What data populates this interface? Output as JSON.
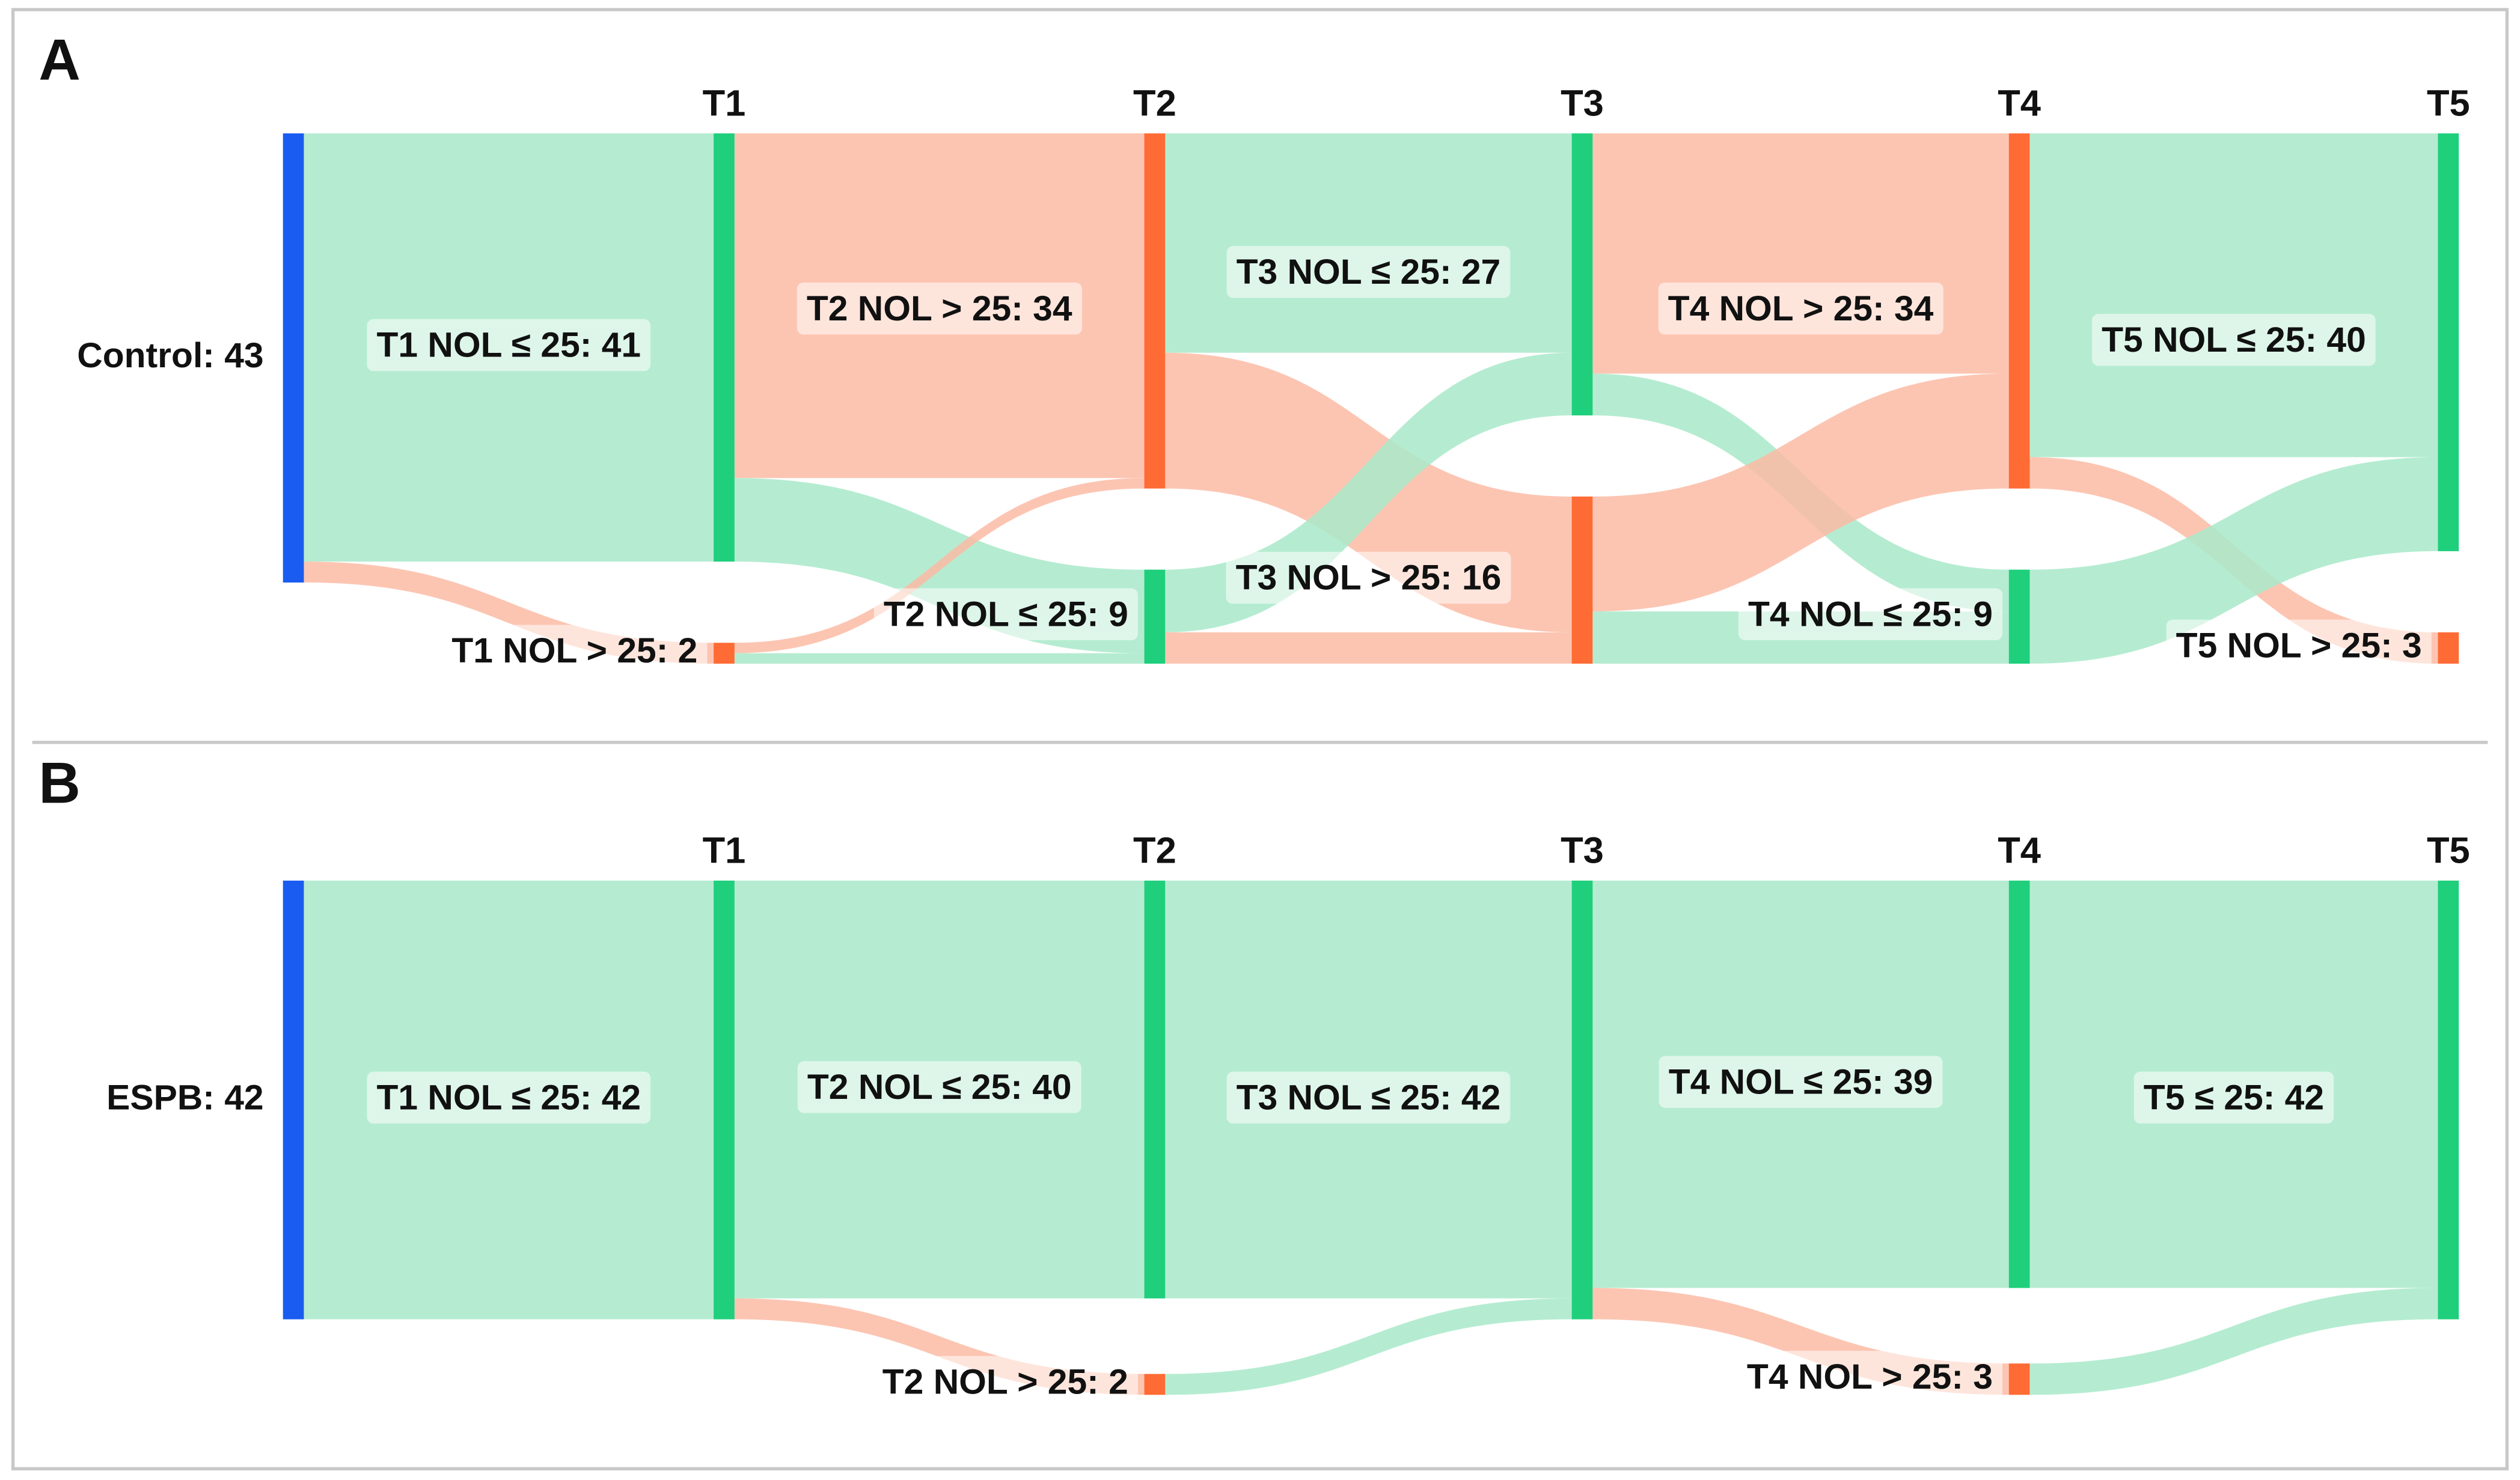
{
  "chart_data": [
    {
      "type": "sankey",
      "panel": "A",
      "columns": [
        "T1",
        "T2",
        "T3",
        "T4",
        "T5"
      ],
      "nodes": [
        {
          "name": "Control: 43",
          "value": 43,
          "column": 0,
          "color": "#1a5cf0"
        },
        {
          "name": "T1 NOL ≤ 25: 41",
          "value": 41,
          "column": 1,
          "color": "#1fcf7c"
        },
        {
          "name": "T1 NOL > 25: 2",
          "value": 2,
          "column": 1,
          "color": "#ff6b35"
        },
        {
          "name": "T2 NOL > 25: 34",
          "value": 34,
          "column": 2,
          "color": "#ff6b35"
        },
        {
          "name": "T2 NOL ≤ 25: 9",
          "value": 9,
          "column": 2,
          "color": "#1fcf7c"
        },
        {
          "name": "T3 NOL ≤ 25: 27",
          "value": 27,
          "column": 3,
          "color": "#1fcf7c"
        },
        {
          "name": "T3 NOL > 25: 16",
          "value": 16,
          "column": 3,
          "color": "#ff6b35"
        },
        {
          "name": "T4 NOL > 25: 34",
          "value": 34,
          "column": 4,
          "color": "#ff6b35"
        },
        {
          "name": "T4 NOL ≤ 25: 9",
          "value": 9,
          "column": 4,
          "color": "#1fcf7c"
        },
        {
          "name": "T5 NOL ≤ 25: 40",
          "value": 40,
          "column": 5,
          "color": "#1fcf7c"
        },
        {
          "name": "T5 NOL > 25: 3",
          "value": 3,
          "column": 5,
          "color": "#ff6b35"
        }
      ],
      "links": [
        {
          "source": 0,
          "target": 1,
          "value": 41,
          "color": "#a8e9c9"
        },
        {
          "source": 0,
          "target": 2,
          "value": 2,
          "color": "#fbbba5"
        },
        {
          "source": 1,
          "target": 3,
          "value": 33,
          "color": "#fbbba5"
        },
        {
          "source": 1,
          "target": 4,
          "value": 8,
          "color": "#a8e9c9"
        },
        {
          "source": 2,
          "target": 3,
          "value": 1,
          "color": "#fbbba5"
        },
        {
          "source": 2,
          "target": 4,
          "value": 1,
          "color": "#a8e9c9"
        },
        {
          "source": 3,
          "target": 5,
          "value": 21,
          "color": "#a8e9c9"
        },
        {
          "source": 3,
          "target": 6,
          "value": 13,
          "color": "#fbbba5"
        },
        {
          "source": 4,
          "target": 5,
          "value": 6,
          "color": "#a8e9c9"
        },
        {
          "source": 4,
          "target": 6,
          "value": 3,
          "color": "#fbbba5"
        },
        {
          "source": 5,
          "target": 7,
          "value": 23,
          "color": "#fbbba5"
        },
        {
          "source": 5,
          "target": 8,
          "value": 4,
          "color": "#a8e9c9"
        },
        {
          "source": 6,
          "target": 7,
          "value": 11,
          "color": "#fbbba5"
        },
        {
          "source": 6,
          "target": 8,
          "value": 5,
          "color": "#a8e9c9"
        },
        {
          "source": 7,
          "target": 9,
          "value": 31,
          "color": "#a8e9c9"
        },
        {
          "source": 7,
          "target": 10,
          "value": 3,
          "color": "#fbbba5"
        },
        {
          "source": 8,
          "target": 9,
          "value": 9,
          "color": "#a8e9c9"
        }
      ]
    },
    {
      "type": "sankey",
      "panel": "B",
      "columns": [
        "T1",
        "T2",
        "T3",
        "T4",
        "T5"
      ],
      "nodes": [
        {
          "name": "ESPB: 42",
          "value": 42,
          "column": 0,
          "color": "#1a5cf0"
        },
        {
          "name": "T1 NOL ≤ 25: 42",
          "value": 42,
          "column": 1,
          "color": "#1fcf7c"
        },
        {
          "name": "T2 NOL ≤ 25: 40",
          "value": 40,
          "column": 2,
          "color": "#1fcf7c"
        },
        {
          "name": "T2 NOL > 25: 2",
          "value": 2,
          "column": 2,
          "color": "#ff6b35"
        },
        {
          "name": "T3 NOL ≤ 25: 42",
          "value": 42,
          "column": 3,
          "color": "#1fcf7c"
        },
        {
          "name": "T4 NOL ≤ 25: 39",
          "value": 39,
          "column": 4,
          "color": "#1fcf7c"
        },
        {
          "name": "T4 NOL > 25: 3",
          "value": 3,
          "column": 4,
          "color": "#ff6b35"
        },
        {
          "name": "T5 ≤ 25: 42",
          "value": 42,
          "column": 5,
          "color": "#1fcf7c"
        }
      ],
      "links": [
        {
          "source": 0,
          "target": 1,
          "value": 42,
          "color": "#a8e9c9"
        },
        {
          "source": 1,
          "target": 2,
          "value": 40,
          "color": "#a8e9c9"
        },
        {
          "source": 1,
          "target": 3,
          "value": 2,
          "color": "#fbbba5"
        },
        {
          "source": 2,
          "target": 4,
          "value": 40,
          "color": "#a8e9c9"
        },
        {
          "source": 3,
          "target": 4,
          "value": 2,
          "color": "#a8e9c9"
        },
        {
          "source": 4,
          "target": 5,
          "value": 39,
          "color": "#a8e9c9"
        },
        {
          "source": 4,
          "target": 6,
          "value": 3,
          "color": "#fbbba5"
        },
        {
          "source": 5,
          "target": 7,
          "value": 39,
          "color": "#a8e9c9"
        },
        {
          "source": 6,
          "target": 7,
          "value": 3,
          "color": "#a8e9c9"
        }
      ]
    }
  ]
}
